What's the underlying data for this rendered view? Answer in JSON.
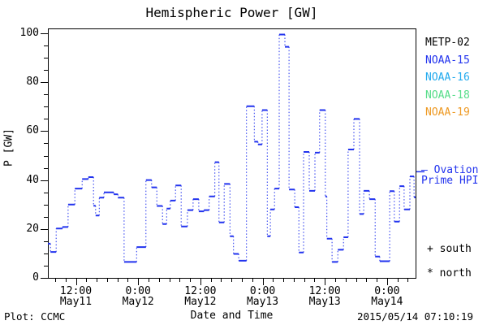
{
  "title": "Hemispheric Power [GW]",
  "axes": {
    "ylabel": "P [GW]",
    "xlabel": "Date and Time"
  },
  "footer": {
    "left": "Plot: CCMC",
    "right": "2015/05/14 07:10:19"
  },
  "legend": [
    {
      "label": "METP-02",
      "color": "#000000"
    },
    {
      "label": "NOAA-15",
      "color": "#2233ee"
    },
    {
      "label": "NOAA-16",
      "color": "#22aaee"
    },
    {
      "label": "NOAA-18",
      "color": "#55dd88"
    },
    {
      "label": "NOAA-19",
      "color": "#ee9922"
    }
  ],
  "ovation": {
    "line1": "— Ovation",
    "line2": "Prime HPI",
    "color": "#2233ee",
    "level_gw": 43.4
  },
  "markers": {
    "south": "+ south",
    "north": "* north"
  },
  "chart_data": {
    "type": "line",
    "style": "step plot: solid horizontal value segments joined by dotted vertical connectors",
    "line_color": "#2233ee",
    "title": "Hemispheric Power [GW]",
    "xlabel": "Date and Time",
    "ylabel": "P [GW]",
    "ylim": [
      0,
      102
    ],
    "y_major_ticks": [
      0,
      20,
      40,
      60,
      80,
      100
    ],
    "y_minor_step": 5,
    "x_total_hours": 70.9,
    "x_minor_step_hours": 2,
    "x_minor_offset_hours": 1.4,
    "x_major_ticks": [
      {
        "h": 5.4,
        "time": "12:00",
        "date": "May11"
      },
      {
        "h": 17.4,
        "time": "0:00",
        "date": "May12"
      },
      {
        "h": 29.4,
        "time": "12:00",
        "date": "May12"
      },
      {
        "h": 41.4,
        "time": "0:00",
        "date": "May13"
      },
      {
        "h": 53.4,
        "time": "12:00",
        "date": "May13"
      },
      {
        "h": 65.4,
        "time": "0:00",
        "date": "May14"
      }
    ],
    "steps": [
      [
        0,
        14
      ],
      [
        0.5,
        10.6
      ],
      [
        1.6,
        20.2
      ],
      [
        2.8,
        20.8
      ],
      [
        3.9,
        30
      ],
      [
        5.2,
        36.5
      ],
      [
        6.6,
        40.4
      ],
      [
        7.8,
        41.2
      ],
      [
        8.8,
        29.5
      ],
      [
        9.2,
        25.5
      ],
      [
        9.9,
        32.8
      ],
      [
        10.8,
        35
      ],
      [
        12.7,
        34.2
      ],
      [
        13.5,
        32.8
      ],
      [
        14.7,
        6.5
      ],
      [
        17.1,
        12.6
      ],
      [
        18.9,
        40
      ],
      [
        20,
        37
      ],
      [
        21,
        29.4
      ],
      [
        22.1,
        22
      ],
      [
        22.9,
        28.3
      ],
      [
        23.6,
        31.6
      ],
      [
        24.6,
        37.8
      ],
      [
        25.7,
        21
      ],
      [
        26.9,
        27.7
      ],
      [
        28,
        32.2
      ],
      [
        29.1,
        27.2
      ],
      [
        30.1,
        27.7
      ],
      [
        31.1,
        33.3
      ],
      [
        32.2,
        47.3
      ],
      [
        33,
        22.7
      ],
      [
        34,
        38.4
      ],
      [
        35.1,
        17
      ],
      [
        35.8,
        9.8
      ],
      [
        36.8,
        7
      ],
      [
        38.3,
        70.2
      ],
      [
        39.8,
        55.7
      ],
      [
        40.5,
        54.6
      ],
      [
        41.3,
        68.6
      ],
      [
        42.3,
        17
      ],
      [
        42.9,
        28
      ],
      [
        43.7,
        36.5
      ],
      [
        44.6,
        99.5
      ],
      [
        45.7,
        94.5
      ],
      [
        46.5,
        36.1
      ],
      [
        47.6,
        28.9
      ],
      [
        48.4,
        10.4
      ],
      [
        49.3,
        51.5
      ],
      [
        50.4,
        35.6
      ],
      [
        51.5,
        51.2
      ],
      [
        52.4,
        68.6
      ],
      [
        53.5,
        33.3
      ],
      [
        53.8,
        16
      ],
      [
        54.8,
        6.5
      ],
      [
        55.9,
        11.5
      ],
      [
        57,
        16.6
      ],
      [
        57.9,
        52.5
      ],
      [
        59,
        65
      ],
      [
        60.1,
        26.1
      ],
      [
        60.9,
        35.6
      ],
      [
        62,
        32.2
      ],
      [
        63.1,
        8.7
      ],
      [
        64,
        6.8
      ],
      [
        65.9,
        35.5
      ],
      [
        66.8,
        23
      ],
      [
        67.8,
        37.5
      ],
      [
        68.7,
        28
      ],
      [
        69.8,
        41.5
      ],
      [
        70.6,
        33
      ]
    ]
  }
}
